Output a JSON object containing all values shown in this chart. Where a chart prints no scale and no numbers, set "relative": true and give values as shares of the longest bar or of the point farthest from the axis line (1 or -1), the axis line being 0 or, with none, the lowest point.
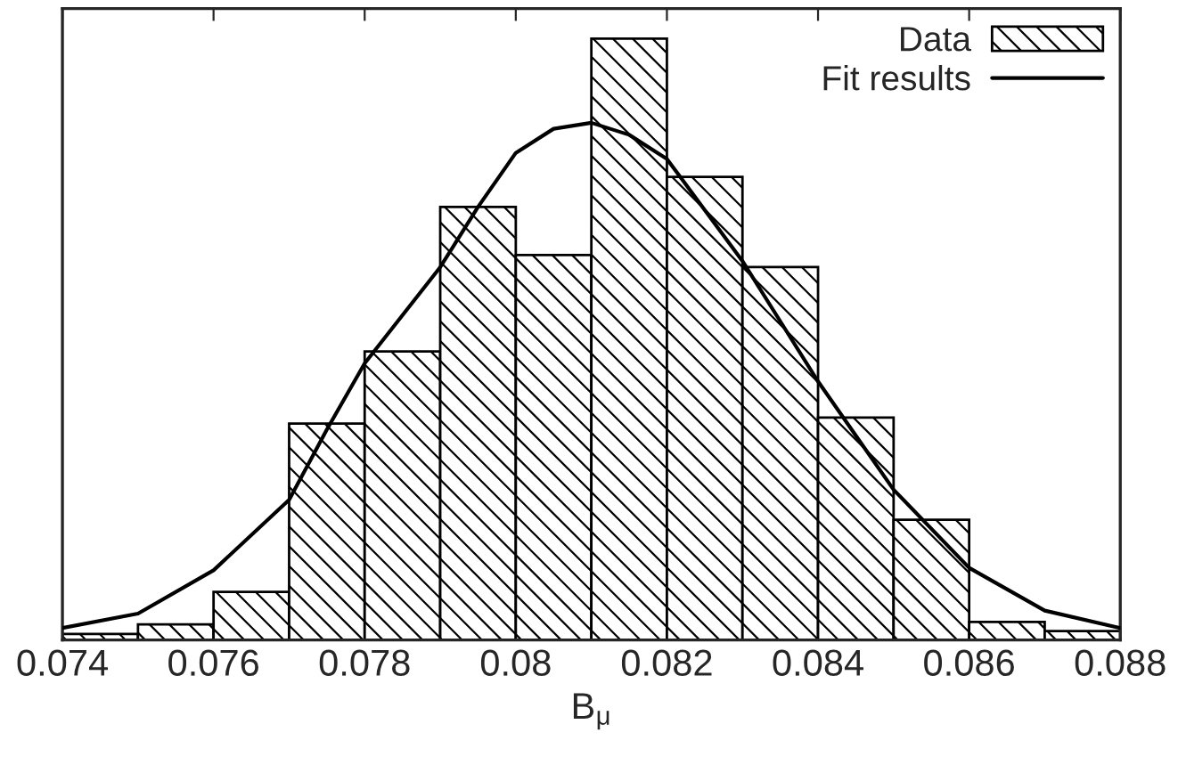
{
  "chart_data": {
    "type": "histogram",
    "relative": true,
    "xlabel": "B$_{μ}$",
    "bins": [
      0.074,
      0.075,
      0.076,
      0.077,
      0.078,
      0.079,
      0.08,
      0.081,
      0.082,
      0.083,
      0.084,
      0.085,
      0.086,
      0.087,
      0.088
    ],
    "xlim": [
      0.074,
      0.088
    ],
    "xticks": [
      0.074,
      0.076,
      0.078,
      0.08,
      0.082,
      0.084,
      0.086,
      0.088
    ],
    "legend": "top right",
    "series": [
      {
        "name": "Data",
        "color": "#000000",
        "values": [
          0.01,
          0.026,
          0.08,
          0.36,
          0.48,
          0.72,
          0.64,
          1.0,
          0.77,
          0.62,
          0.37,
          0.2,
          0.03,
          0.015
        ]
      },
      {
        "name": "Fit results",
        "type": "line",
        "color": "#000000",
        "x": [
          0.074,
          0.075,
          0.076,
          0.077,
          0.0775,
          0.078,
          0.079,
          0.0795,
          0.08,
          0.0805,
          0.081,
          0.0815,
          0.082,
          0.083,
          0.0835,
          0.084,
          0.085,
          0.086,
          0.087,
          0.088
        ],
        "values": [
          0.02,
          0.044,
          0.116,
          0.233,
          0.35,
          0.46,
          0.62,
          0.72,
          0.81,
          0.85,
          0.86,
          0.84,
          0.8,
          0.63,
          0.53,
          0.43,
          0.25,
          0.12,
          0.049,
          0.02
        ]
      }
    ]
  }
}
